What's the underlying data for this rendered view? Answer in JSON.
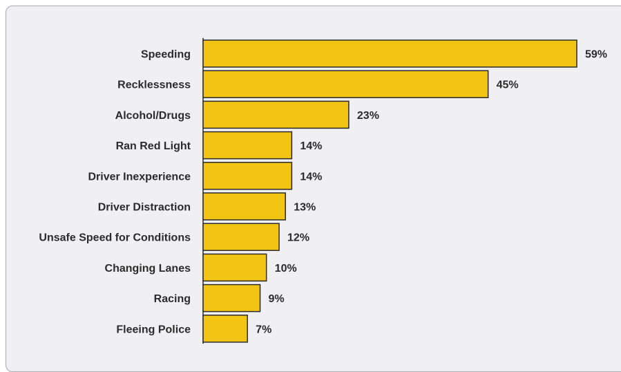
{
  "chart_data": {
    "type": "bar",
    "orientation": "horizontal",
    "categories": [
      "Speeding",
      "Recklessness",
      "Alcohol/Drugs",
      "Ran Red Light",
      "Driver Inexperience",
      "Driver Distraction",
      "Unsafe Speed for Conditions",
      "Changing Lanes",
      "Racing",
      "Fleeing Police"
    ],
    "values": [
      59,
      45,
      23,
      14,
      14,
      13,
      12,
      10,
      9,
      7
    ],
    "value_labels": [
      "59%",
      "45%",
      "23%",
      "14%",
      "14%",
      "13%",
      "12%",
      "10%",
      "9%",
      "7%"
    ],
    "title": "",
    "xlabel": "",
    "ylabel": "",
    "xlim": [
      0,
      59
    ],
    "grid": false,
    "legend": "none",
    "bar_color": "#f2c414",
    "bar_stroke": "#2a2a2a",
    "background_color": "#f0f0f2"
  }
}
